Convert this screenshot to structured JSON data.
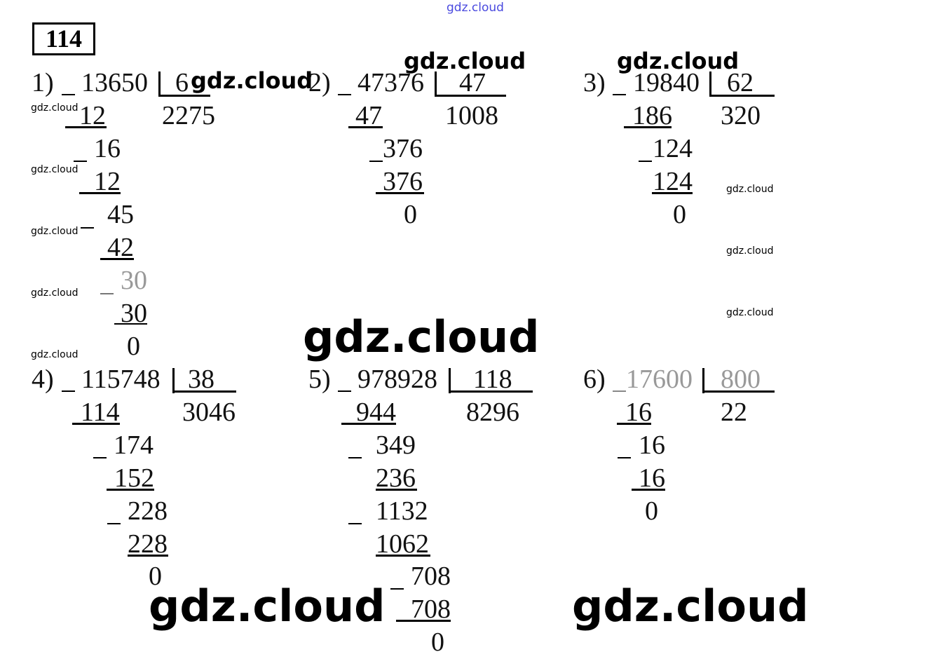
{
  "exercise_number": "114",
  "watermarks": {
    "top": "gdz.cloud",
    "w": "gdz.cloud"
  },
  "problems": [
    {
      "label": "1)",
      "dividend": "13650",
      "divisor": "6",
      "quotient": "2275",
      "steps": [
        "12",
        "16",
        "12",
        "45",
        "42",
        "30",
        "30",
        "0"
      ]
    },
    {
      "label": "2)",
      "dividend": "47376",
      "divisor": "47",
      "quotient": "1008",
      "steps": [
        "47",
        "376",
        "376",
        "0"
      ]
    },
    {
      "label": "3)",
      "dividend": "19840",
      "divisor": "62",
      "quotient": "320",
      "steps": [
        "186",
        "124",
        "124",
        "0"
      ]
    },
    {
      "label": "4)",
      "dividend": "115748",
      "divisor": "38",
      "quotient": "3046",
      "steps": [
        "114",
        "174",
        "152",
        "228",
        "228",
        "0"
      ]
    },
    {
      "label": "5)",
      "dividend": "978928",
      "divisor": "118",
      "quotient": "8296",
      "steps": [
        "944",
        "349",
        "236",
        "1132",
        "1062",
        "708",
        "708",
        "0"
      ]
    },
    {
      "label": "6)",
      "dividend": "17600",
      "divisor": "800",
      "quotient": "22",
      "steps": [
        "16",
        "16",
        "16",
        "0"
      ]
    }
  ]
}
